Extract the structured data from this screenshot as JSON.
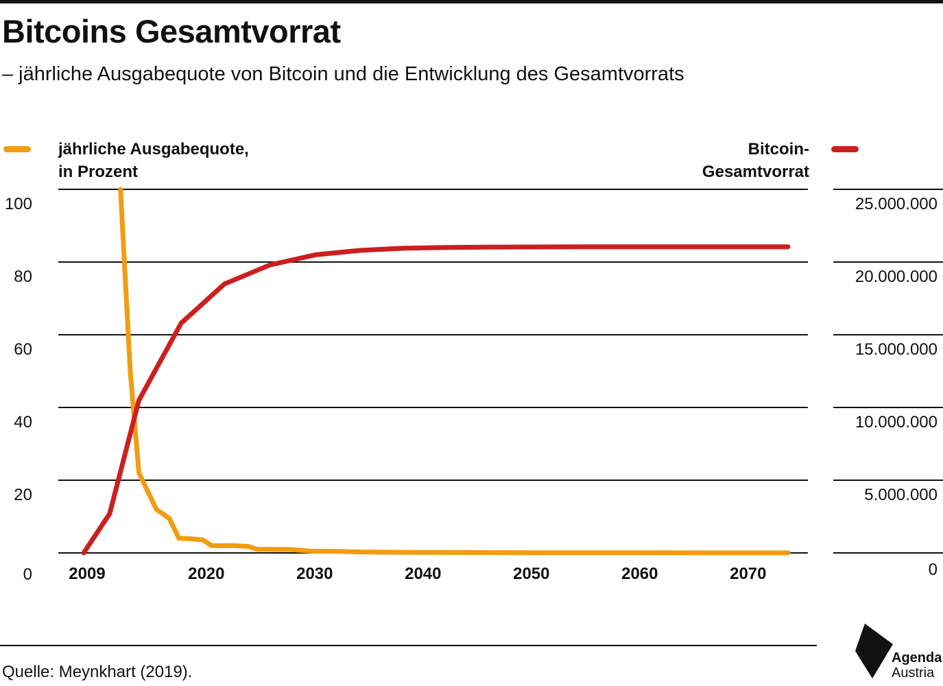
{
  "header": {
    "title": "Bitcoins Gesamtvorrat",
    "subtitle": "– jährliche Ausgabequote von Bitcoin und die Entwicklung des Gesamtvorrats"
  },
  "legend": {
    "left_label_line1": "jährliche Ausgabequote,",
    "left_label_line2": "in Prozent",
    "right_label_line1": "Bitcoin-",
    "right_label_line2": "Gesamtvorrat"
  },
  "footer": {
    "source": "Quelle: Meynkhart (2019).",
    "logo_line1": "Agenda",
    "logo_line2": "Austria"
  },
  "colors": {
    "issuance": "#f29c11",
    "supply": "#cc1f1f",
    "text": "#111111"
  },
  "chart_data": {
    "type": "line",
    "title": "Bitcoins Gesamtvorrat",
    "x_ticks": [
      "2009",
      "2020",
      "2030",
      "2040",
      "2050",
      "2060",
      "2070"
    ],
    "x_tick_values": [
      2009,
      2020,
      2030,
      2040,
      2050,
      2060,
      2070
    ],
    "xlim": [
      2009,
      2074
    ],
    "y_left_ticks": [
      "0",
      "20",
      "40",
      "60",
      "80",
      "100"
    ],
    "y_left_tick_values": [
      0,
      20,
      40,
      60,
      80,
      100
    ],
    "ylim_left": [
      0,
      100
    ],
    "y_right_ticks": [
      "0",
      "5.000.000",
      "10.000.000",
      "15.000.000",
      "20.000.000",
      "25.000.000"
    ],
    "y_right_tick_values": [
      0,
      5000000,
      10000000,
      15000000,
      20000000,
      25000000
    ],
    "ylim_right": [
      0,
      25000000
    ],
    "grid": true,
    "series": [
      {
        "name": "jährliche Ausgabequote, in Prozent",
        "axis": "left",
        "color": "#f29c11",
        "x": [
          2012.4,
          2013.3,
          2014.1,
          2015.7,
          2016.9,
          2017.8,
          2018.8,
          2020.0,
          2020.8,
          2022.8,
          2024.2,
          2025.0,
          2028.0,
          2030.0,
          2032.0,
          2035.0,
          2040.0,
          2045.0,
          2050.0,
          2060.0,
          2074.0
        ],
        "values": [
          100.0,
          50.0,
          22.0,
          12.0,
          9.5,
          4.0,
          3.9,
          3.6,
          2.0,
          2.0,
          1.8,
          1.0,
          0.95,
          0.5,
          0.45,
          0.25,
          0.15,
          0.1,
          0.05,
          0.03,
          0.02
        ]
      },
      {
        "name": "Bitcoin-Gesamtvorrat",
        "axis": "right",
        "color": "#cc1f1f",
        "x": [
          2009.0,
          2011.4,
          2014.1,
          2018.0,
          2022.0,
          2026.2,
          2030.4,
          2034.5,
          2038.5,
          2042.4,
          2046.4,
          2050.4,
          2055.0,
          2060.0,
          2065.0,
          2070.0,
          2074.0
        ],
        "values": [
          0,
          2700000,
          10500000,
          15800000,
          18500000,
          19800000,
          20500000,
          20800000,
          20950000,
          21000000,
          21030000,
          21040000,
          21050000,
          21050000,
          21050000,
          21050000,
          21050000
        ]
      }
    ]
  }
}
